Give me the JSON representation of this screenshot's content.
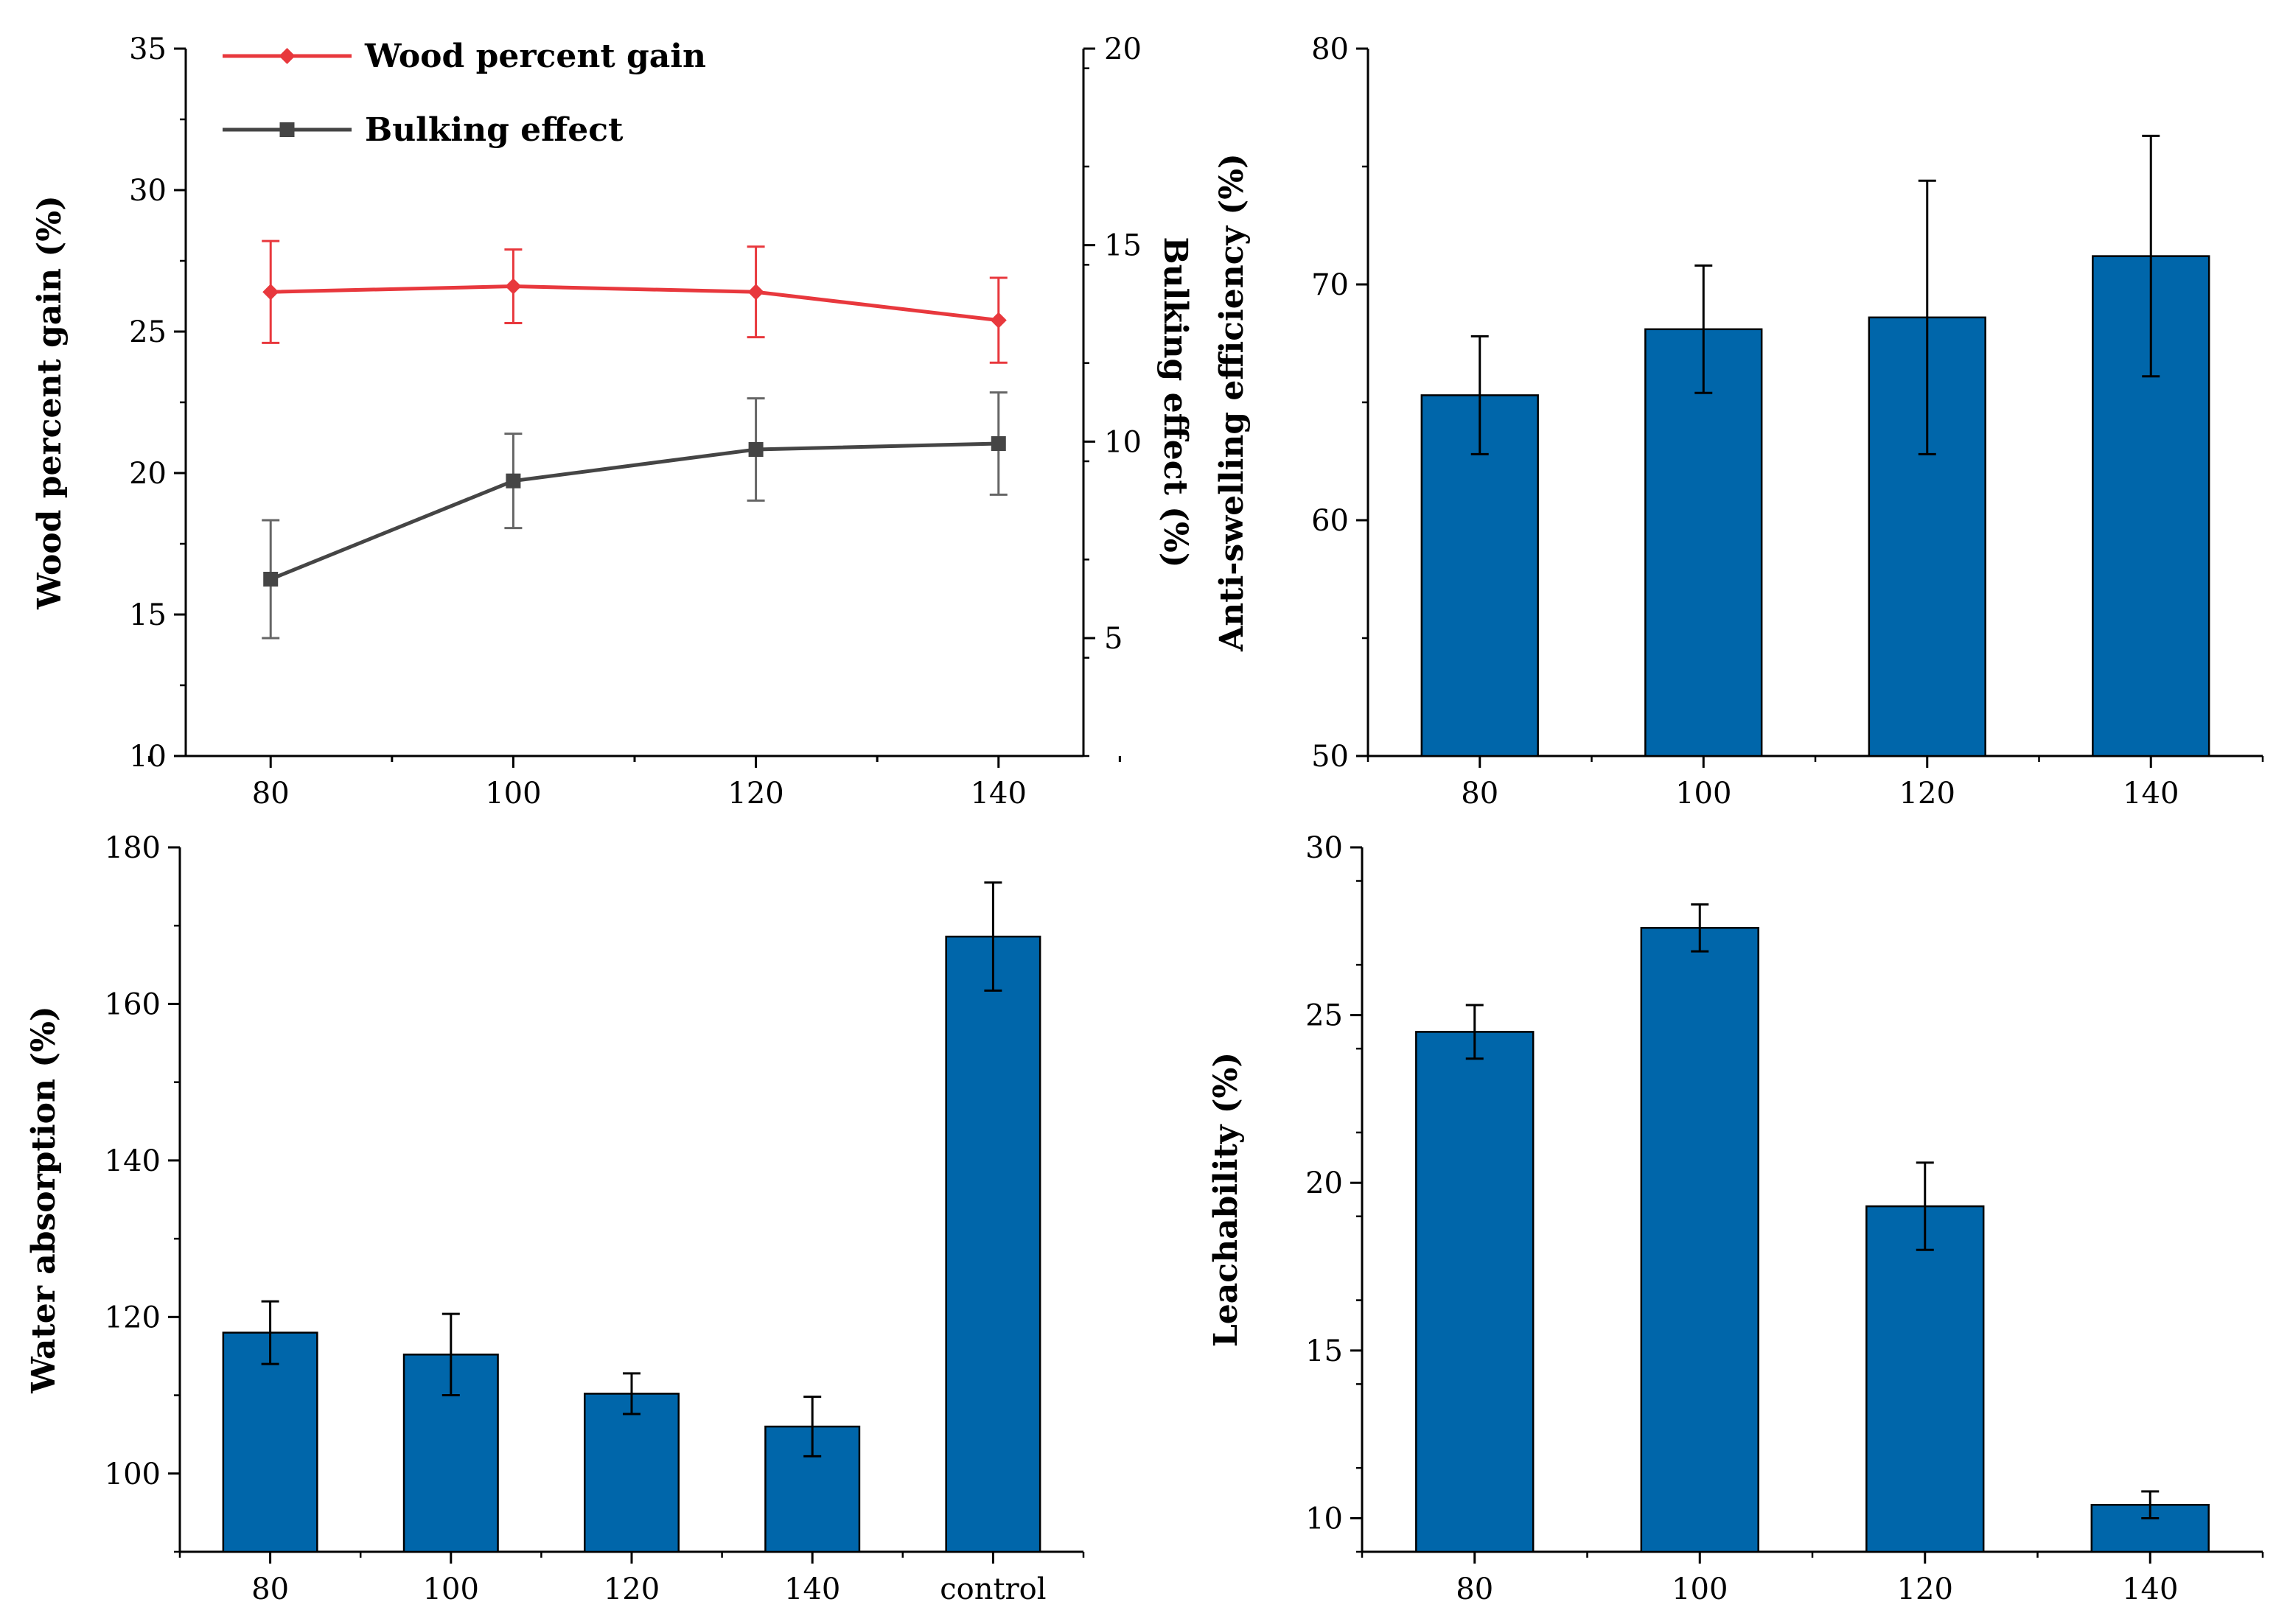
{
  "colors": {
    "bar": "#0066aa",
    "red_series": "#e8383d",
    "gray_series": "#454545",
    "axis": "#000000"
  },
  "chart_data": [
    {
      "id": "top-left",
      "type": "line",
      "x": [
        80,
        100,
        120,
        140
      ],
      "xticks": [
        "80",
        "100",
        "120",
        "140"
      ],
      "xlim": [
        73,
        147
      ],
      "ylabel": "Wood percent gain (%)",
      "ylim": [
        10,
        35
      ],
      "yticks": [
        "10",
        "15",
        "20",
        "25",
        "30",
        "35"
      ],
      "y2label": "Bulking effect (%)",
      "y2lim": [
        2,
        20
      ],
      "y2ticks": [
        "5",
        "10",
        "15",
        "20"
      ],
      "series": [
        {
          "name": "Wood percent gain",
          "axis": "left",
          "marker": "diamond",
          "color": "#e8383d",
          "values": [
            26.4,
            26.6,
            26.4,
            25.4
          ],
          "errors": [
            1.8,
            1.3,
            1.6,
            1.5
          ]
        },
        {
          "name": "Bulking effect",
          "axis": "right",
          "marker": "square",
          "color": "#454545",
          "values": [
            6.5,
            9.0,
            9.8,
            9.95
          ],
          "errors": [
            1.5,
            1.2,
            1.3,
            1.3
          ]
        }
      ],
      "legend": "top-left"
    },
    {
      "id": "top-right",
      "type": "bar",
      "categories": [
        "80",
        "100",
        "120",
        "140"
      ],
      "values": [
        65.3,
        68.1,
        68.6,
        71.2
      ],
      "errors": [
        2.5,
        2.7,
        5.8,
        5.1
      ],
      "ylabel": "Anti-swelling efficiency (%)",
      "ylim": [
        50,
        80
      ],
      "yticks": [
        "50",
        "60",
        "70",
        "80"
      ]
    },
    {
      "id": "bottom-left",
      "type": "bar",
      "categories": [
        "80",
        "100",
        "120",
        "140",
        "control"
      ],
      "values": [
        118,
        115.2,
        110.2,
        106,
        168.6
      ],
      "errors": [
        4,
        5.2,
        2.6,
        3.8,
        6.9
      ],
      "ylabel": "Water absorption (%)",
      "ylim": [
        90,
        180
      ],
      "yticks": [
        "100",
        "120",
        "140",
        "160",
        "180"
      ]
    },
    {
      "id": "bottom-right",
      "type": "bar",
      "categories": [
        "80",
        "100",
        "120",
        "140"
      ],
      "values": [
        24.5,
        27.6,
        19.3,
        10.4
      ],
      "errors": [
        0.8,
        0.7,
        1.3,
        0.4
      ],
      "ylabel": "Leachability (%)",
      "ylim": [
        9,
        30
      ],
      "yticks": [
        "10",
        "15",
        "20",
        "25",
        "30"
      ]
    }
  ]
}
